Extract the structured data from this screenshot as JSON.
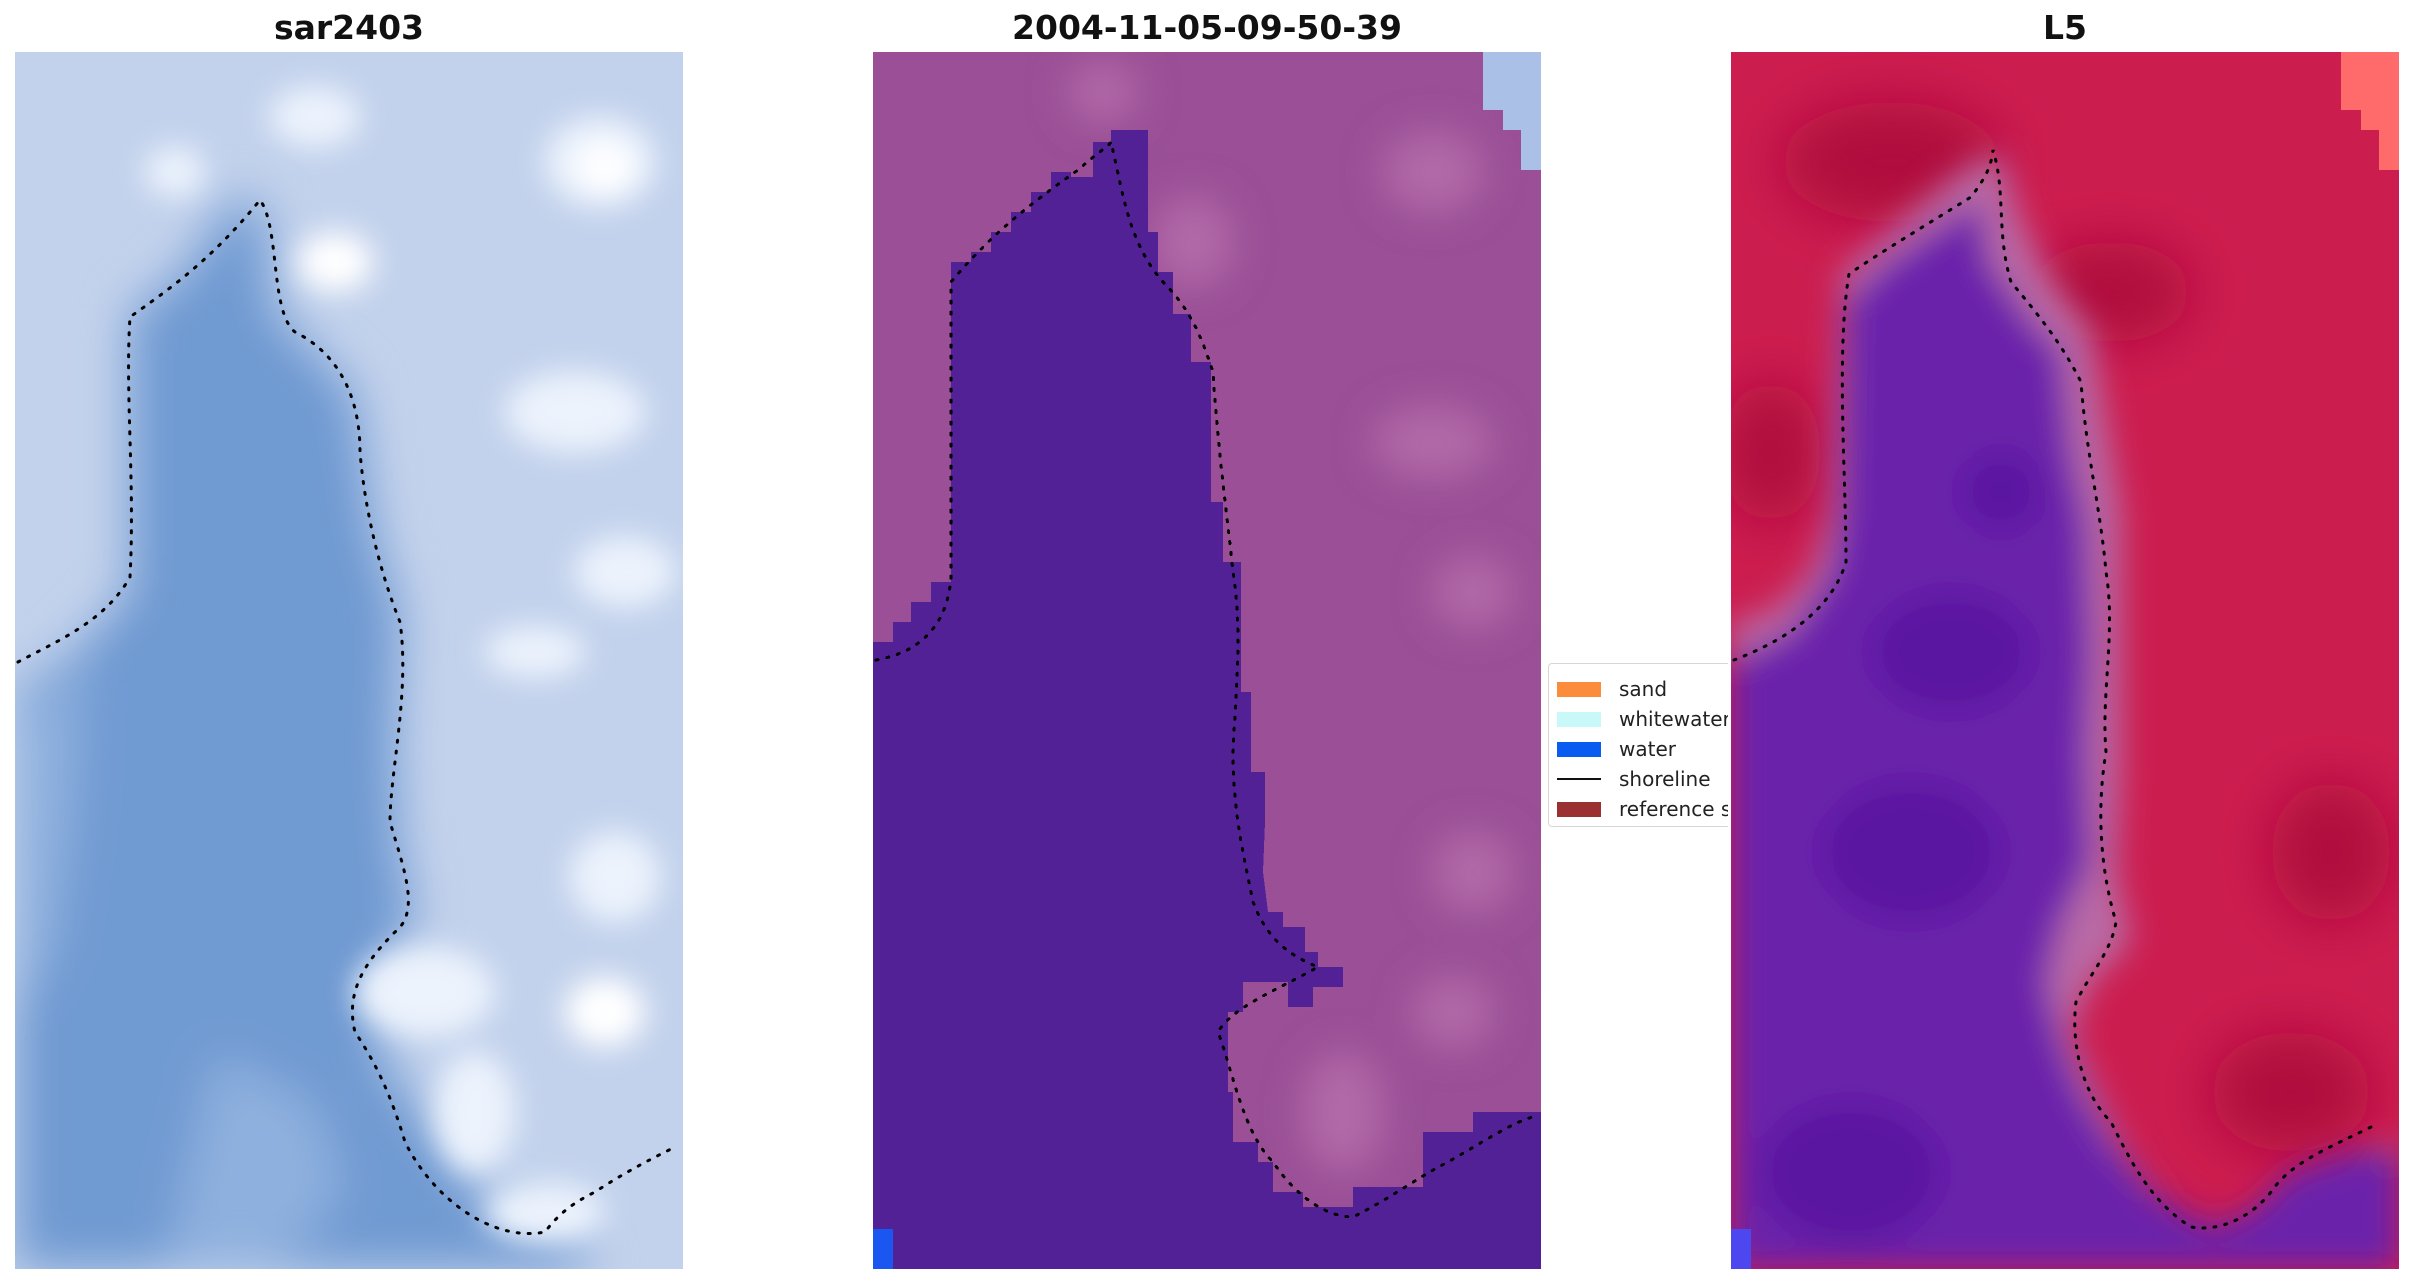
{
  "panels": [
    {
      "title": "sar2403",
      "kind": "true-color satellite image",
      "colors": {
        "water": "#6f9ad2",
        "shallow": "#8eb0de",
        "land": "#c3d2ec",
        "bright": "#ecf3fd",
        "cloud": "#ffffff"
      }
    },
    {
      "title": "2004-11-05-09-50-39",
      "kind": "classified image",
      "colors": {
        "water": "#522196",
        "land": "#9a4f96",
        "land_light": "#b36aa8",
        "corner": "#aac0e6",
        "water_pixel": "#1a56f0"
      }
    },
    {
      "title": "L5",
      "kind": "index image",
      "colors": {
        "land": "#cc1d4f",
        "land_dark": "#b00e3c",
        "transition": "#b96aa5",
        "water": "#6b22ab",
        "water_dark": "#5a14a0",
        "corner": "#ff6a6a",
        "water_pixel": "#4d47f0"
      }
    }
  ],
  "legend": {
    "items": [
      {
        "label": "sand",
        "color": "#fb8c3c",
        "icon": "sand-swatch"
      },
      {
        "label": "whitewater",
        "color": "#c8f8f8",
        "icon": "whitewater-swatch"
      },
      {
        "label": "water",
        "color": "#0a5cf0",
        "icon": "water-swatch"
      },
      {
        "label": "shoreline",
        "color": "#111111",
        "icon": "shoreline-line"
      },
      {
        "label": "reference shoreline",
        "color": "#9b3030",
        "icon": "reference-shoreline-swatch"
      }
    ]
  }
}
